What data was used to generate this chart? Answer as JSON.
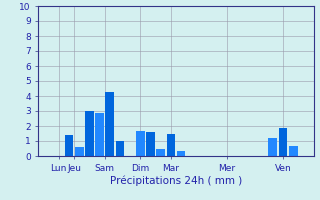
{
  "bar_values": [
    1.4,
    0.6,
    3.0,
    2.9,
    4.3,
    1.0,
    1.7,
    1.6,
    0.5,
    1.5,
    0.35,
    1.2,
    1.9,
    0.65
  ],
  "bar_positions": [
    2,
    3,
    4,
    5,
    6,
    7,
    9,
    10,
    11,
    12,
    13,
    22,
    23,
    24
  ],
  "tick_positions": [
    1,
    2.5,
    5.5,
    9,
    12,
    17.5,
    23
  ],
  "tick_labels": [
    "Lun",
    "Jeu",
    "Sam",
    "Dim",
    "Mar",
    "Mer",
    "Ven"
  ],
  "xlabel": "Précipitations 24h ( mm )",
  "ylim": [
    0,
    10
  ],
  "yticks": [
    0,
    1,
    2,
    3,
    4,
    5,
    6,
    7,
    8,
    9,
    10
  ],
  "bar_color": "#0066dd",
  "bar_color_alt": "#2288ff",
  "background_color": "#d4f0f0",
  "grid_color": "#9999aa",
  "axis_color": "#333388",
  "text_color": "#2222aa",
  "xlim": [
    -0.5,
    26
  ]
}
